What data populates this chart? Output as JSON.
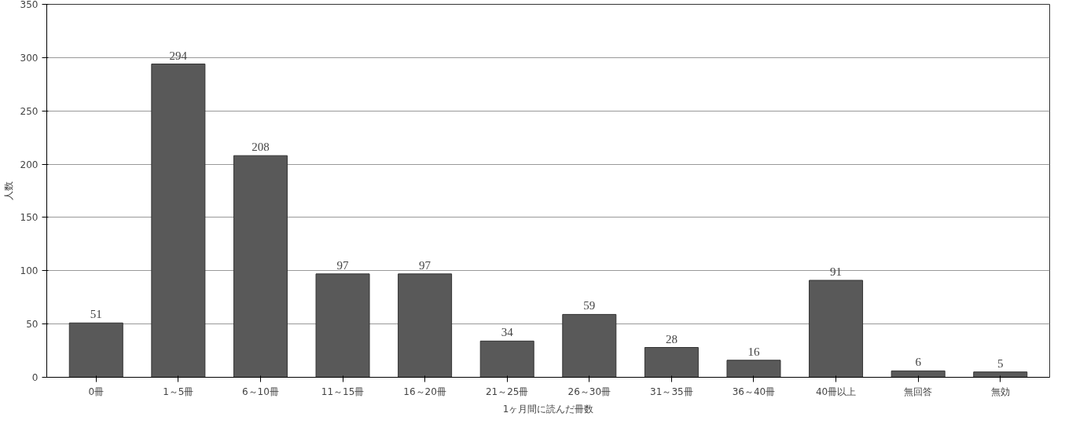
{
  "chart_data": {
    "type": "bar",
    "xlabel": "1ヶ月間に読んだ冊数",
    "ylabel": "人数",
    "categories": [
      "0冊",
      "1～5冊",
      "6～10冊",
      "11～15冊",
      "16～20冊",
      "21～25冊",
      "26～30冊",
      "31～35冊",
      "36～40冊",
      "40冊以上",
      "無回答",
      "無効"
    ],
    "values": [
      51,
      294,
      208,
      97,
      97,
      34,
      59,
      28,
      16,
      91,
      6,
      5
    ],
    "color": "#595959",
    "ylim": [
      0,
      350
    ],
    "yticks": [
      0,
      50,
      100,
      150,
      200,
      250,
      300,
      350
    ],
    "grid": "y",
    "data_labels": true
  }
}
